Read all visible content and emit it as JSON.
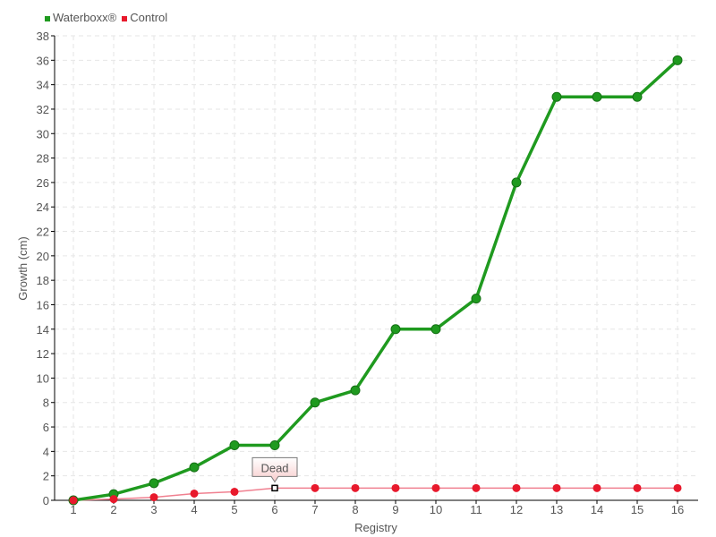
{
  "chart_data": {
    "type": "line",
    "xlabel": "Registry",
    "ylabel": "Growth (cm)",
    "ylim": [
      0,
      38
    ],
    "ytick_step": 2,
    "grid": true,
    "legend": "top-left",
    "categories": [
      "1",
      "2",
      "3",
      "4",
      "5",
      "6",
      "7",
      "8",
      "9",
      "10",
      "11",
      "12",
      "13",
      "14",
      "15",
      "16"
    ],
    "series": [
      {
        "name": "Waterboxx®",
        "color": "#1f9a1f",
        "values": [
          0,
          0.5,
          1.4,
          2.7,
          4.5,
          4.5,
          8,
          9,
          14,
          14,
          16.5,
          26,
          33,
          33,
          33,
          36
        ]
      },
      {
        "name": "Control",
        "color": "#e8192c",
        "values": [
          0,
          0.1,
          0.25,
          0.55,
          0.7,
          1,
          1,
          1,
          1,
          1,
          1,
          1,
          1,
          1,
          1,
          1
        ]
      }
    ],
    "annotations": [
      {
        "series": "Control",
        "category": "6",
        "text": "Dead"
      }
    ]
  }
}
